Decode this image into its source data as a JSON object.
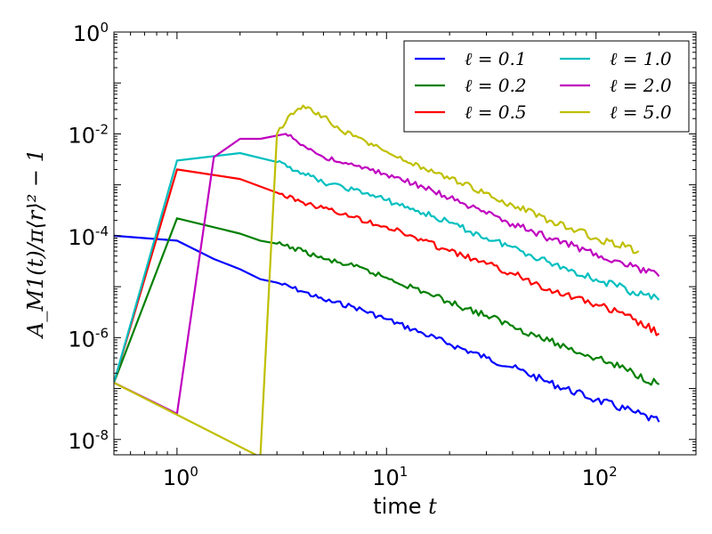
{
  "chart_data": {
    "type": "line",
    "xscale": "log",
    "yscale": "log",
    "xlim": [
      0.5,
      300
    ],
    "ylim": [
      5e-09,
      1
    ],
    "xlabel": {
      "text": "time",
      "var": "t"
    },
    "ylabel": "A_M1(t)/π⟨r⟩² − 1",
    "xticks": [
      {
        "base": "10",
        "exp": "0",
        "value": 1
      },
      {
        "base": "10",
        "exp": "1",
        "value": 10
      },
      {
        "base": "10",
        "exp": "2",
        "value": 100
      }
    ],
    "yticks": [
      {
        "base": "10",
        "exp": "-8",
        "value": 1e-08
      },
      {
        "base": "10",
        "exp": "-6",
        "value": 1e-06
      },
      {
        "base": "10",
        "exp": "-4",
        "value": 0.0001
      },
      {
        "base": "10",
        "exp": "-2",
        "value": 0.01
      },
      {
        "base": "10",
        "exp": "0",
        "value": 1
      }
    ],
    "legend": {
      "location": "top-right",
      "columns": 2
    },
    "series": [
      {
        "name": "ℓ = 0.1",
        "color": "#0000ff",
        "x": [
          0.5,
          1,
          1.5,
          2,
          2.5,
          3,
          4,
          5,
          7,
          10,
          15,
          20,
          30,
          40,
          60,
          100,
          150,
          200
        ],
        "y": [
          0.0001,
          8e-05,
          3.5e-05,
          2.2e-05,
          1.4e-05,
          1.2e-05,
          8e-06,
          5.5e-06,
          4e-06,
          2.3e-06,
          1.2e-06,
          7.5e-07,
          4e-07,
          2.6e-07,
          1.3e-07,
          6e-08,
          3.5e-08,
          2.2e-08
        ]
      },
      {
        "name": "ℓ = 0.2",
        "color": "#008000",
        "x": [
          0.5,
          1,
          2,
          2.5,
          3,
          4,
          5,
          7,
          10,
          15,
          20,
          30,
          40,
          60,
          100,
          150,
          200
        ],
        "y": [
          1.3e-07,
          0.00022,
          0.00011,
          8e-05,
          7e-05,
          5e-05,
          3.5e-05,
          2.5e-05,
          1.5e-05,
          8e-06,
          5e-06,
          2.7e-06,
          1.7e-06,
          8.5e-07,
          4e-07,
          2.1e-07,
          1.2e-07
        ]
      },
      {
        "name": "ℓ = 0.5",
        "color": "#ff0000",
        "x": [
          0.5,
          1,
          2,
          3,
          4,
          5,
          7,
          10,
          15,
          20,
          30,
          40,
          60,
          100,
          150,
          200
        ],
        "y": [
          1.3e-07,
          0.002,
          0.0013,
          0.0007,
          0.00045,
          0.00035,
          0.00023,
          0.00015,
          8e-05,
          5e-05,
          2.8e-05,
          1.8e-05,
          9e-06,
          4.5e-06,
          2.3e-06,
          1.2e-06
        ]
      },
      {
        "name": "ℓ = 1.0",
        "color": "#00bfbf",
        "x": [
          0.5,
          1,
          2,
          3,
          4,
          5,
          7,
          10,
          15,
          20,
          30,
          40,
          60,
          100,
          150,
          200
        ],
        "y": [
          1.3e-07,
          0.003,
          0.0042,
          0.0028,
          0.0017,
          0.0011,
          0.0008,
          0.0005,
          0.00028,
          0.00018,
          9e-05,
          6e-05,
          3e-05,
          1.4e-05,
          8e-06,
          5.5e-06
        ]
      },
      {
        "name": "ℓ = 2.0",
        "color": "#bf00bf",
        "x": [
          0.5,
          1,
          1.5,
          2,
          2.5,
          3.3,
          4,
          5,
          7,
          10,
          15,
          20,
          30,
          40,
          60,
          100,
          150,
          200
        ],
        "y": [
          1.3e-07,
          3.2e-08,
          0.0035,
          0.008,
          0.008,
          0.01,
          0.006,
          0.0035,
          0.0024,
          0.0016,
          0.0009,
          0.00055,
          0.00027,
          0.00017,
          9e-05,
          4.5e-05,
          2.5e-05,
          1.6e-05
        ]
      },
      {
        "name": "ℓ = 5.0",
        "color": "#bfbf00",
        "x": [
          0.5,
          2.5,
          3,
          3.5,
          4,
          5,
          6,
          8,
          10,
          12,
          15,
          20,
          30,
          40,
          60,
          100,
          160
        ],
        "y": [
          1.3e-07,
          4.5e-09,
          0.01,
          0.025,
          0.036,
          0.022,
          0.012,
          0.007,
          0.0045,
          0.003,
          0.0022,
          0.0013,
          0.0007,
          0.0004,
          0.0002,
          9e-05,
          5e-05
        ]
      }
    ]
  }
}
